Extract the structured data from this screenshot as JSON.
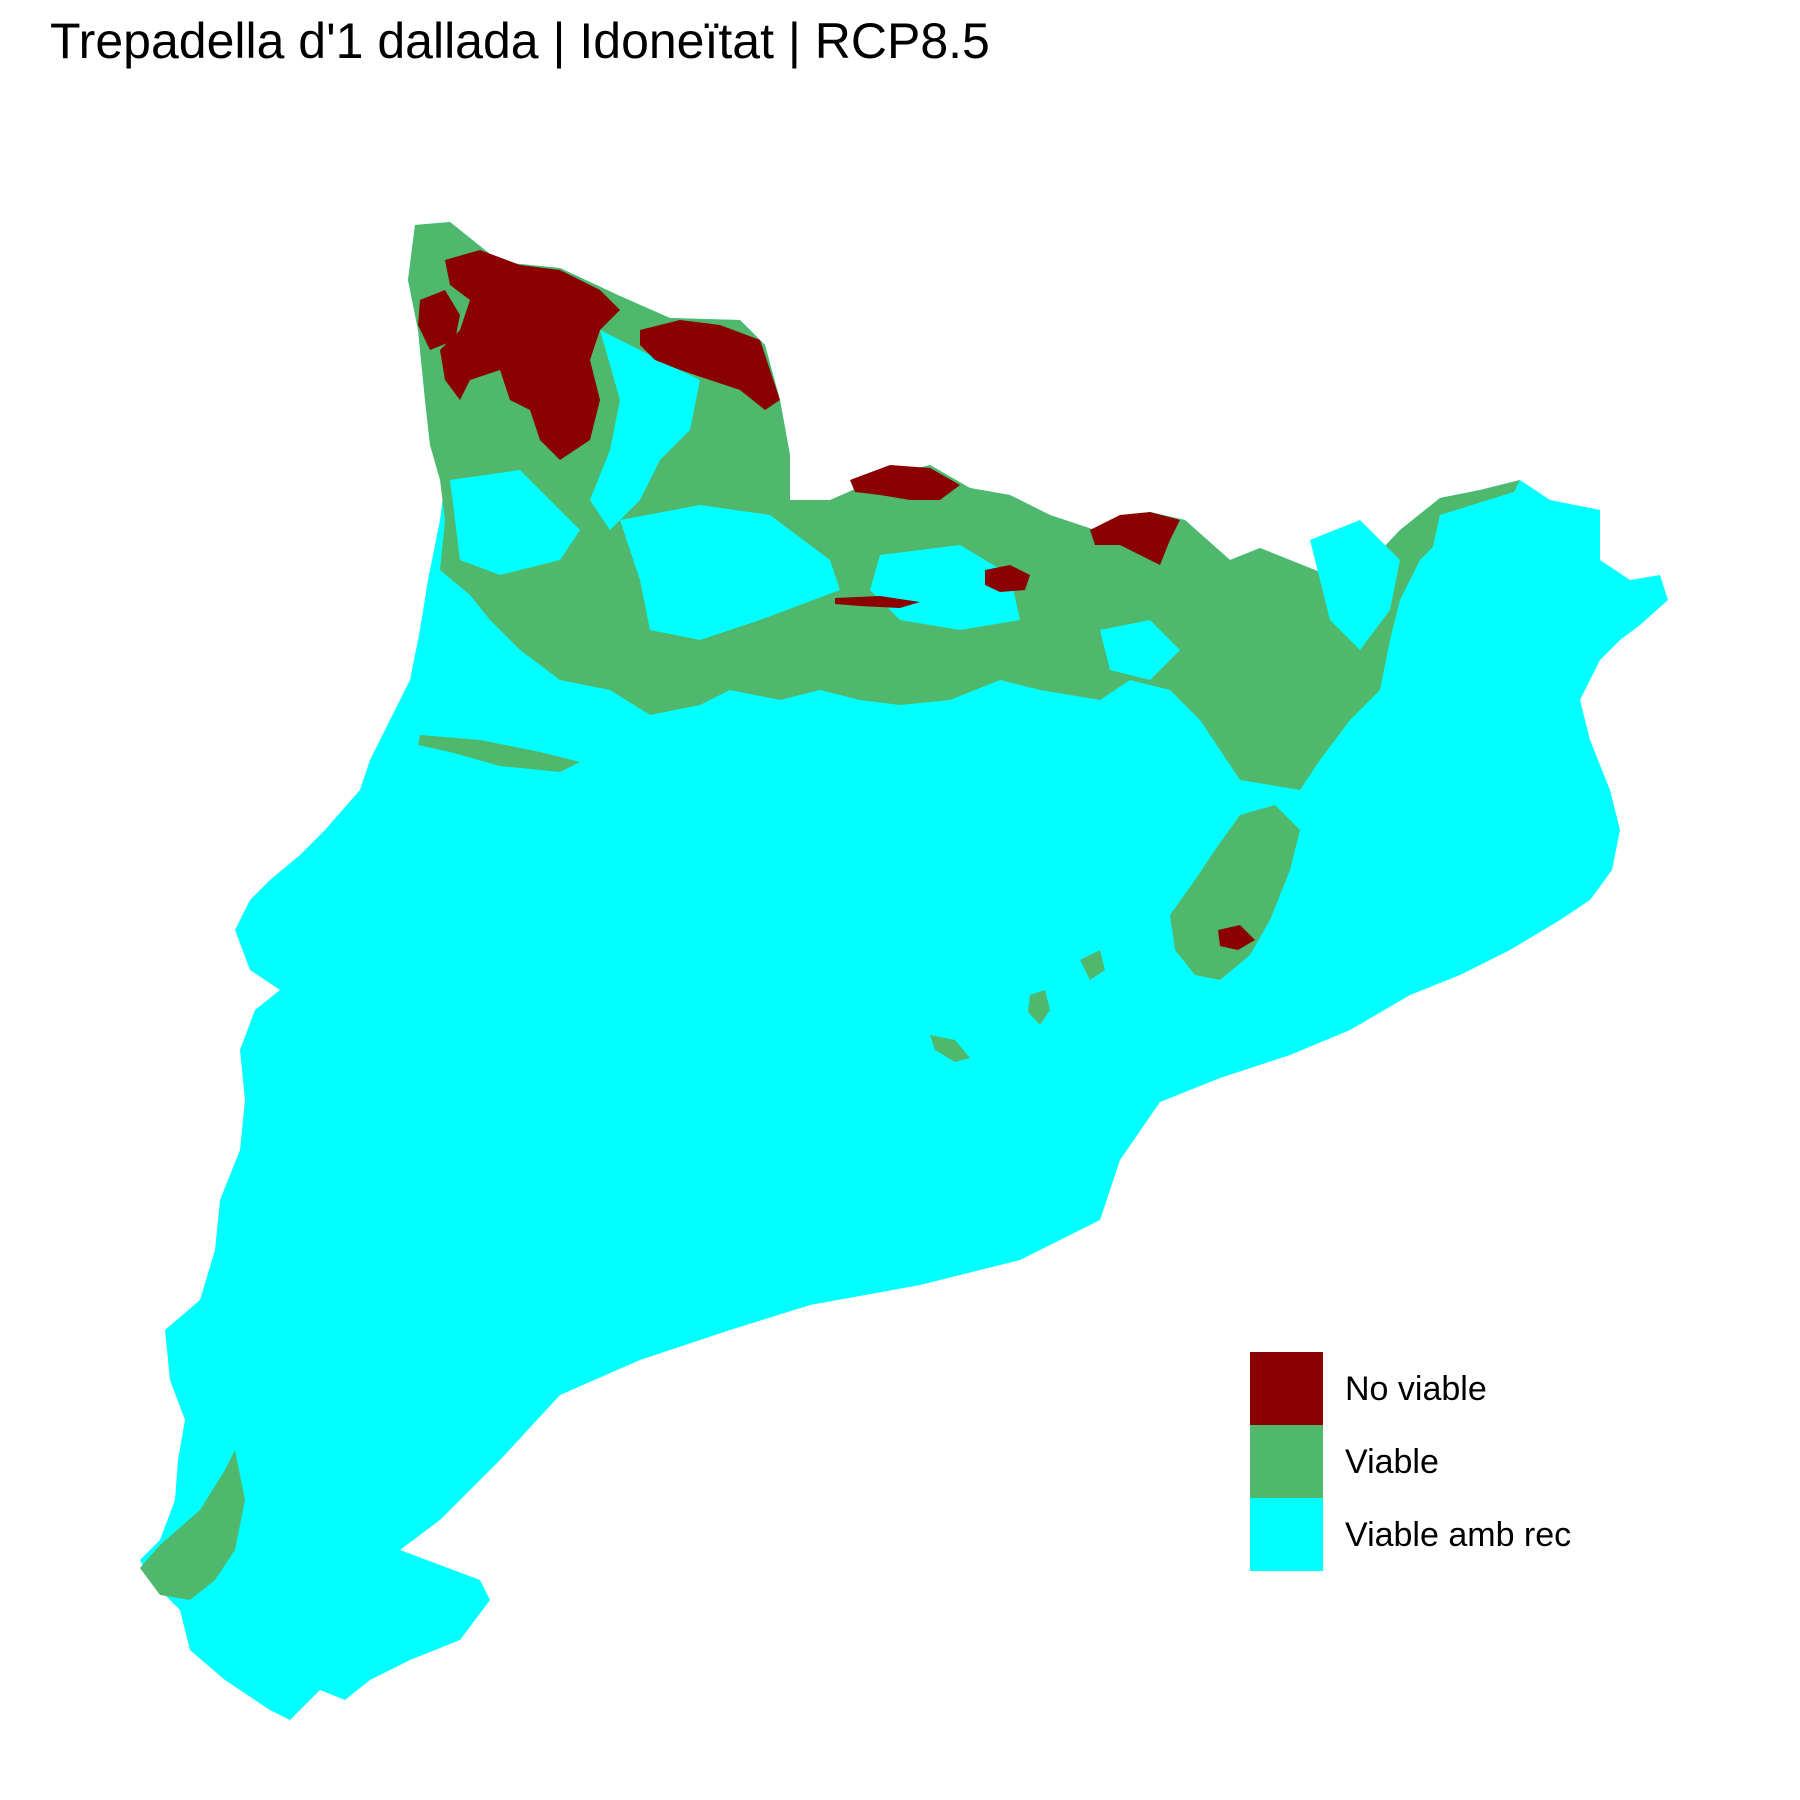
{
  "title": "Trepadella d'1 dallada | Idoneïtat | RCP8.5",
  "legend": {
    "items": [
      {
        "label": "No viable",
        "color": "#8b0000"
      },
      {
        "label": "Viable",
        "color": "#50b86c"
      },
      {
        "label": "Viable amb rec",
        "color": "#00ffff"
      }
    ]
  },
  "colors": {
    "background": "#ffffff",
    "no_viable": "#8b0000",
    "viable": "#50b86c",
    "viable_amb_rec": "#00ffff"
  }
}
